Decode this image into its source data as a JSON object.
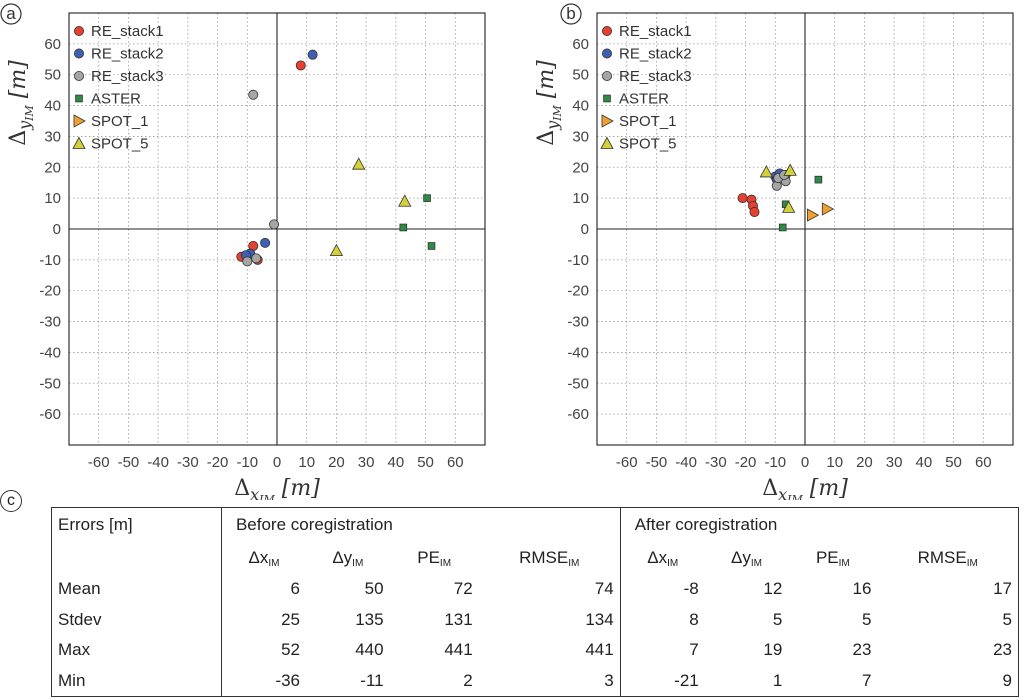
{
  "chart_data": [
    {
      "panel": "a",
      "type": "scatter",
      "xlabel": "Δ",
      "xlabel_sub": "x",
      "xlabel_subsub": "IM",
      "xlabel_unit": "[m]",
      "ylabel": "Δ",
      "ylabel_sub": "y",
      "ylabel_subsub": "IM",
      "ylabel_unit": "[m]",
      "xlim": [
        -70,
        70
      ],
      "ylim": [
        -70,
        70
      ],
      "xticks": [
        -60,
        -50,
        -40,
        -30,
        -20,
        -10,
        0,
        10,
        20,
        30,
        40,
        50,
        60
      ],
      "yticks": [
        -60,
        -50,
        -40,
        -30,
        -20,
        -10,
        0,
        10,
        20,
        30,
        40,
        50,
        60
      ],
      "grid": true,
      "legend_position": "top-left",
      "series": [
        {
          "name": "RE_stack1",
          "marker": "circle",
          "color": "#e8402f",
          "points": [
            [
              8,
              53
            ],
            [
              -8,
              -5.5
            ],
            [
              -12,
              -9
            ],
            [
              -6.5,
              -10
            ]
          ]
        },
        {
          "name": "RE_stack2",
          "marker": "circle",
          "color": "#3f5fb5",
          "points": [
            [
              12,
              56.5
            ],
            [
              -4,
              -4.5
            ],
            [
              -9,
              -8
            ],
            [
              -10.5,
              -8.5
            ]
          ]
        },
        {
          "name": "RE_stack3",
          "marker": "circle",
          "color": "#a5a5a5",
          "points": [
            [
              -8,
              43.5
            ],
            [
              -1,
              1.5
            ],
            [
              -10,
              -10.5
            ],
            [
              -7,
              -9.5
            ]
          ]
        },
        {
          "name": "ASTER",
          "marker": "square",
          "color": "#2e8b44",
          "points": [
            [
              50.5,
              10
            ],
            [
              42.5,
              0.5
            ],
            [
              52,
              -5.5
            ]
          ]
        },
        {
          "name": "SPOT_1",
          "marker": "triangle-right",
          "color": "#f0a030",
          "points": []
        },
        {
          "name": "SPOT_5",
          "marker": "triangle-up",
          "color": "#d4d03a",
          "points": [
            [
              27.5,
              21
            ],
            [
              43,
              9
            ],
            [
              20,
              -7
            ]
          ]
        }
      ]
    },
    {
      "panel": "b",
      "type": "scatter",
      "xlabel": "Δ",
      "xlabel_sub": "x",
      "xlabel_subsub": "IM",
      "xlabel_unit": "[m]",
      "ylabel": "Δ",
      "ylabel_sub": "y",
      "ylabel_subsub": "IM",
      "ylabel_unit": "[m]",
      "xlim": [
        -70,
        70
      ],
      "ylim": [
        -70,
        70
      ],
      "xticks": [
        -60,
        -50,
        -40,
        -30,
        -20,
        -10,
        0,
        10,
        20,
        30,
        40,
        50,
        60
      ],
      "yticks": [
        -60,
        -50,
        -40,
        -30,
        -20,
        -10,
        0,
        10,
        20,
        30,
        40,
        50,
        60
      ],
      "grid": true,
      "legend_position": "top-left",
      "series": [
        {
          "name": "RE_stack1",
          "marker": "circle",
          "color": "#e8402f",
          "points": [
            [
              -21,
              10
            ],
            [
              -18,
              9.5
            ],
            [
              -17.5,
              7.5
            ],
            [
              -17,
              5.5
            ]
          ]
        },
        {
          "name": "RE_stack2",
          "marker": "circle",
          "color": "#3f5fb5",
          "points": [
            [
              -10,
              17
            ],
            [
              -8.5,
              18
            ],
            [
              -6.5,
              17.5
            ],
            [
              -9.5,
              16
            ]
          ]
        },
        {
          "name": "RE_stack3",
          "marker": "circle",
          "color": "#a5a5a5",
          "points": [
            [
              -9.5,
              14
            ],
            [
              -6.5,
              15.5
            ],
            [
              -9,
              16.5
            ],
            [
              -7,
              17.5
            ]
          ]
        },
        {
          "name": "ASTER",
          "marker": "square",
          "color": "#2e8b44",
          "points": [
            [
              4.5,
              16
            ],
            [
              -6.5,
              8
            ],
            [
              -7.5,
              0.5
            ]
          ]
        },
        {
          "name": "SPOT_1",
          "marker": "triangle-right",
          "color": "#f0a030",
          "points": [
            [
              2.5,
              4.5
            ],
            [
              7.5,
              6.5
            ]
          ]
        },
        {
          "name": "SPOT_5",
          "marker": "triangle-up",
          "color": "#d4d03a",
          "points": [
            [
              -13,
              18.5
            ],
            [
              -5,
              19
            ],
            [
              -5.5,
              7
            ]
          ]
        }
      ]
    }
  ],
  "panel_labels": {
    "a": "a",
    "b": "b",
    "c": "c"
  },
  "table": {
    "corner_label": "Errors [m]",
    "group_before": "Before coregistration",
    "group_after": "After coregistration",
    "columns": [
      {
        "main": "Δx",
        "sub": "IM"
      },
      {
        "main": "Δy",
        "sub": "IM"
      },
      {
        "main": "PE",
        "sub": "IM"
      },
      {
        "main": "RMSE",
        "sub": "IM"
      },
      {
        "main": "Δx",
        "sub": "IM"
      },
      {
        "main": "Δy",
        "sub": "IM"
      },
      {
        "main": "PE",
        "sub": "IM"
      },
      {
        "main": "RMSE",
        "sub": "IM"
      }
    ],
    "rows": [
      {
        "label": "Mean",
        "values": [
          "6",
          "50",
          "72",
          "74",
          "-8",
          "12",
          "16",
          "17"
        ]
      },
      {
        "label": "Stdev",
        "values": [
          "25",
          "135",
          "131",
          "134",
          "8",
          "5",
          "5",
          "5"
        ]
      },
      {
        "label": "Max",
        "values": [
          "52",
          "440",
          "441",
          "441",
          "7",
          "19",
          "23",
          "23"
        ]
      },
      {
        "label": "Min",
        "values": [
          "-36",
          "-11",
          "2",
          "3",
          "-21",
          "1",
          "7",
          "9"
        ]
      }
    ]
  }
}
